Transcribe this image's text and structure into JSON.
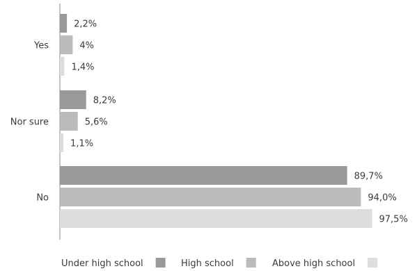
{
  "chart_data": {
    "type": "bar",
    "orientation": "horizontal",
    "categories": [
      "Yes",
      "Nor sure",
      "No"
    ],
    "series": [
      {
        "name": "Under high school",
        "values": [
          2.2,
          8.2,
          89.7
        ],
        "labels": [
          "2,2%",
          "8,2%",
          "89,7%"
        ],
        "color": "#999999"
      },
      {
        "name": "High school",
        "values": [
          4.0,
          5.6,
          94.0
        ],
        "labels": [
          "4%",
          "5,6%",
          "94,0%"
        ],
        "color": "#bbbbbb"
      },
      {
        "name": "Above high school",
        "values": [
          1.4,
          1.1,
          97.5
        ],
        "labels": [
          "1,4%",
          "1,1%",
          "97,5%"
        ],
        "color": "#dddddd"
      }
    ],
    "xlim": [
      0,
      100
    ],
    "grid": false,
    "legend_position": "bottom"
  }
}
